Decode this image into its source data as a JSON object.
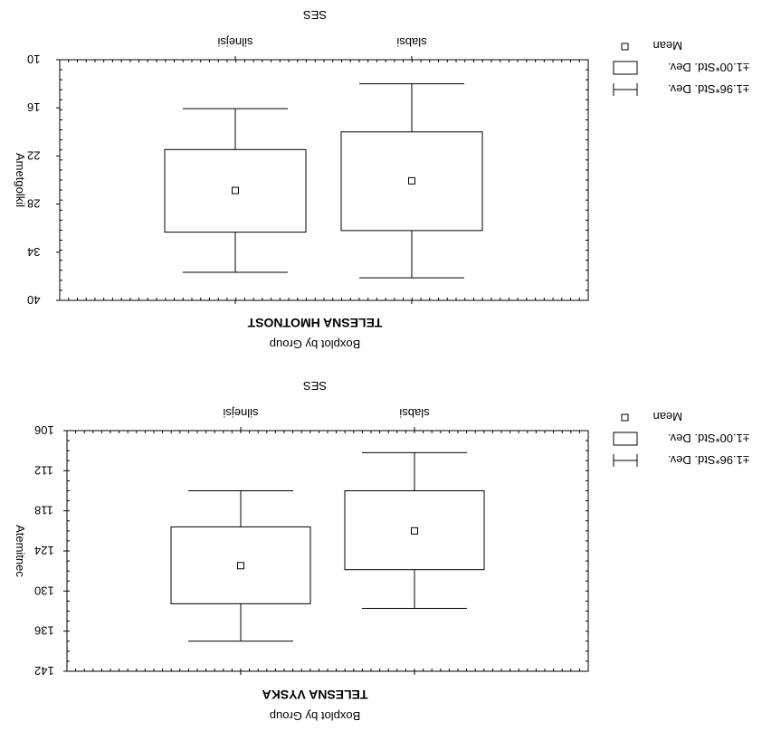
{
  "chart_data": [
    {
      "type": "box",
      "title": "SES",
      "categories": [
        "silnejsi",
        "slabsi"
      ],
      "ylabel": "Ametgolkil",
      "xlabel": "TELESNA HMOTNOST",
      "subtitle": "Boxplot by Group",
      "ylim": [
        10,
        40
      ],
      "y_ticks": [
        "10",
        "16",
        "22",
        "28",
        "34",
        "40"
      ],
      "y_inverted": true,
      "legend": {
        "position": "top-right",
        "items": [
          "Mean",
          "±1.00*Std. Dev.",
          "±1.96*Std. Dev."
        ]
      },
      "boxes": [
        {
          "category": "silnejsi",
          "mean": 26.3,
          "box_low": 21.2,
          "box_high": 31.5,
          "whisker_low": 16.1,
          "whisker_high": 36.5
        },
        {
          "category": "slabsi",
          "mean": 25.1,
          "box_low": 19.0,
          "box_high": 31.3,
          "whisker_low": 13.0,
          "whisker_high": 37.2
        }
      ]
    },
    {
      "type": "box",
      "title": "SES",
      "categories": [
        "silnejsi",
        "slabsi"
      ],
      "ylabel": "Atemitnec",
      "xlabel": "TELESNA VYSKA",
      "subtitle": "Boxplot by Group",
      "ylim": [
        106,
        142
      ],
      "y_ticks": [
        "106",
        "112",
        "118",
        "124",
        "130",
        "136",
        "142"
      ],
      "y_inverted": true,
      "legend": {
        "position": "top-right",
        "items": [
          "Mean",
          "±1.00*Std. Dev.",
          "±1.96*Std. Dev."
        ]
      },
      "boxes": [
        {
          "category": "silnejsi",
          "mean": 126.2,
          "box_low": 120.4,
          "box_high": 131.9,
          "whisker_low": 115.0,
          "whisker_high": 137.5
        },
        {
          "category": "slabsi",
          "mean": 121.0,
          "box_low": 115.0,
          "box_high": 126.8,
          "whisker_low": 109.3,
          "whisker_high": 132.6
        }
      ]
    }
  ]
}
